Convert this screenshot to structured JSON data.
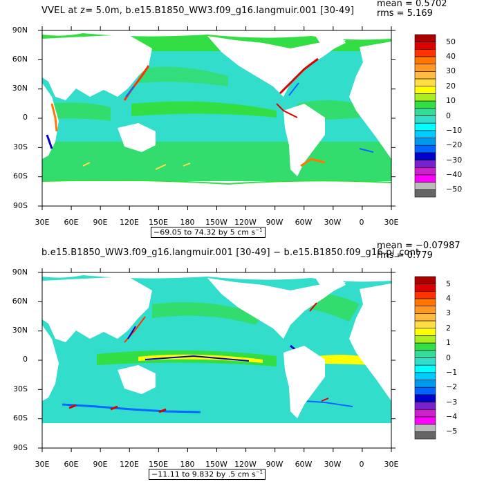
{
  "colors": {
    "ocean_base": "#33ddcc",
    "ocean_green": "#33dd44",
    "land": "#ffffff",
    "frame": "#000000"
  },
  "panels": [
    {
      "title": "VVEL at z=    5.0m, b.e15.B1850_WW3.f09_g16.langmuir.001 [30-49]",
      "mean": "mean = 0.5702",
      "rms": "rms = 5.169",
      "range_prefix": "−69.05 to 74.32 by 5 cm s",
      "range_exp": "−1",
      "lat_labels": [
        "90N",
        "60N",
        "30N",
        "0",
        "30S",
        "60S",
        "90S"
      ],
      "lon_labels": [
        "30E",
        "60E",
        "90E",
        "120E",
        "150E",
        "180",
        "150W",
        "120W",
        "90W",
        "60W",
        "30W",
        "0",
        "30E"
      ],
      "colorbar_labels": [
        "50",
        "40",
        "30",
        "20",
        "10",
        "0",
        "−10",
        "−20",
        "−30",
        "−40",
        "−50"
      ],
      "colorbar_colors": [
        "#aa0000",
        "#dd0000",
        "#ff3300",
        "#ff7700",
        "#ff9922",
        "#ffbb44",
        "#ffdd44",
        "#ffff00",
        "#aaee22",
        "#33dd44",
        "#33dd99",
        "#33ddcc",
        "#00ffff",
        "#00ccff",
        "#0099ee",
        "#0066ff",
        "#0000cc",
        "#7722cc",
        "#cc22cc",
        "#ff00ff",
        "#bbbbbb",
        "#666666"
      ]
    },
    {
      "title": "b.e15.B1850_WW3.f09_g16.langmuir.001 [30-49] − b.e15.B1850.f09_g16.pi_cont",
      "mean": "mean = −0.07987",
      "rms": "rms = 0.779",
      "range_prefix": "−11.11 to 9.832 by .5 cm s",
      "range_exp": "−1",
      "lat_labels": [
        "90N",
        "60N",
        "30N",
        "0",
        "30S",
        "60S",
        "90S"
      ],
      "lon_labels": [
        "30E",
        "60E",
        "90E",
        "120E",
        "150E",
        "180",
        "150W",
        "120W",
        "90W",
        "60W",
        "30W",
        "0",
        "30E"
      ],
      "colorbar_labels": [
        "5",
        "4",
        "3",
        "2",
        "1",
        "0",
        "−1",
        "−2",
        "−3",
        "−4",
        "−5"
      ],
      "colorbar_colors": [
        "#aa0000",
        "#dd0000",
        "#ff3300",
        "#ff7700",
        "#ff9922",
        "#ffbb44",
        "#ffdd44",
        "#ffff00",
        "#aaee22",
        "#33dd44",
        "#33dd99",
        "#33ddcc",
        "#00ffff",
        "#00ccff",
        "#0099ee",
        "#0066ff",
        "#0000cc",
        "#7722cc",
        "#cc22cc",
        "#ff00ff",
        "#bbbbbb",
        "#666666"
      ]
    }
  ]
}
